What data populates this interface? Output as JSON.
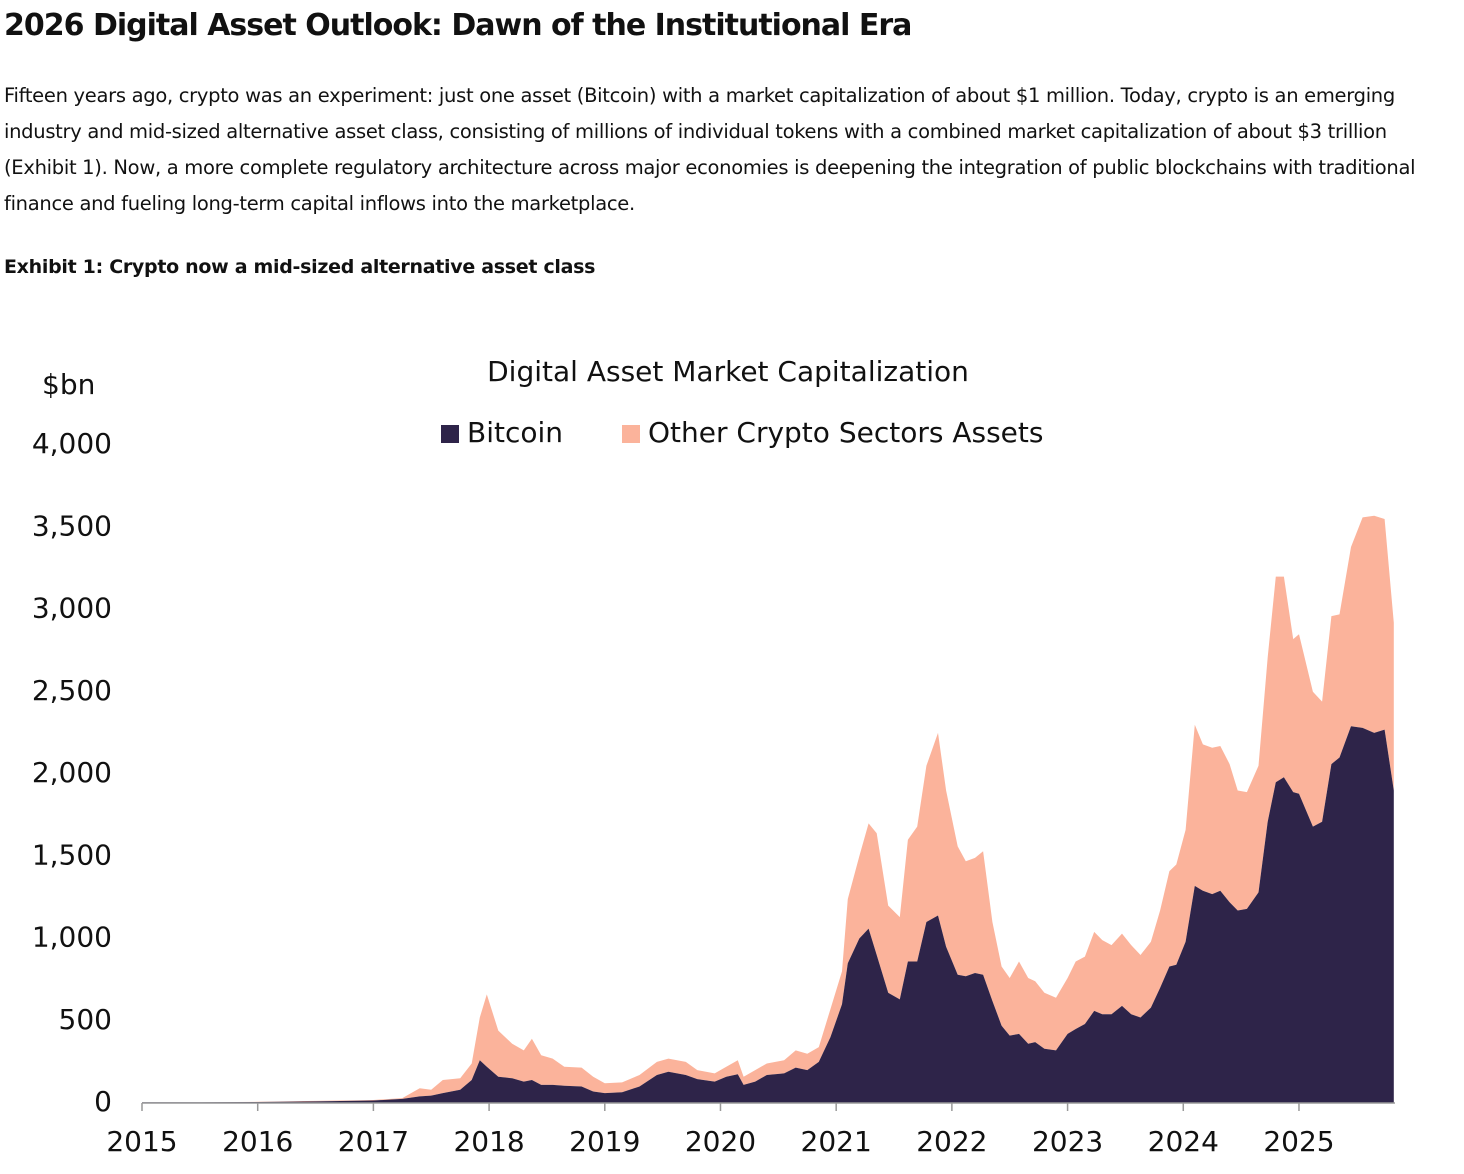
{
  "title": "2026 Digital Asset Outlook: Dawn of the Institutional Era",
  "paragraph": "Fifteen years ago, crypto was an experiment: just one asset (Bitcoin) with a market capitalization of about $1 million. Today, crypto is an emerging industry and mid-sized alternative asset class, consisting of millions of individual tokens with a combined market capitalization of about $3 trillion (Exhibit 1). Now, a more complete regulatory architecture across major economies is deepening the integration of public blockchains with traditional finance and fueling long-term capital inflows into the marketplace.",
  "exhibit_title": "Exhibit 1: Crypto now a mid-sized alternative asset class",
  "chart_data": {
    "type": "stacked_area",
    "title": "Digital Asset Market Capitalization",
    "y_label": "$bn",
    "x": [
      2015.0,
      2015.5,
      2016.0,
      2016.5,
      2017.0,
      2017.25,
      2017.4,
      2017.5,
      2017.6,
      2017.75,
      2017.85,
      2017.92,
      2017.98,
      2018.08,
      2018.2,
      2018.3,
      2018.37,
      2018.45,
      2018.55,
      2018.65,
      2018.8,
      2018.9,
      2019.0,
      2019.15,
      2019.3,
      2019.45,
      2019.55,
      2019.7,
      2019.8,
      2019.95,
      2020.05,
      2020.15,
      2020.2,
      2020.3,
      2020.4,
      2020.55,
      2020.65,
      2020.75,
      2020.85,
      2020.95,
      2021.05,
      2021.1,
      2021.2,
      2021.28,
      2021.35,
      2021.45,
      2021.55,
      2021.62,
      2021.7,
      2021.78,
      2021.88,
      2021.95,
      2022.05,
      2022.12,
      2022.2,
      2022.27,
      2022.35,
      2022.43,
      2022.5,
      2022.58,
      2022.66,
      2022.72,
      2022.8,
      2022.9,
      2023.0,
      2023.07,
      2023.15,
      2023.23,
      2023.3,
      2023.38,
      2023.47,
      2023.55,
      2023.63,
      2023.72,
      2023.8,
      2023.88,
      2023.94,
      2024.02,
      2024.1,
      2024.17,
      2024.25,
      2024.32,
      2024.4,
      2024.47,
      2024.55,
      2024.65,
      2024.73,
      2024.8,
      2024.87,
      2024.95,
      2025.0,
      2025.12,
      2025.2,
      2025.28,
      2025.35,
      2025.45,
      2025.55,
      2025.65,
      2025.74,
      2025.82
    ],
    "series": [
      {
        "name": "Bitcoin",
        "color": "#2e2449",
        "values": [
          4,
          4,
          6,
          10,
          15,
          25,
          40,
          45,
          60,
          80,
          140,
          260,
          220,
          160,
          150,
          130,
          140,
          110,
          110,
          105,
          100,
          70,
          60,
          65,
          100,
          170,
          190,
          170,
          145,
          130,
          160,
          175,
          110,
          130,
          170,
          180,
          215,
          200,
          250,
          400,
          600,
          850,
          1000,
          1060,
          900,
          670,
          630,
          860,
          860,
          1100,
          1140,
          950,
          780,
          770,
          790,
          780,
          620,
          470,
          410,
          420,
          360,
          370,
          330,
          320,
          420,
          450,
          480,
          560,
          540,
          540,
          590,
          540,
          520,
          580,
          700,
          830,
          840,
          980,
          1320,
          1290,
          1270,
          1290,
          1220,
          1170,
          1180,
          1280,
          1710,
          1950,
          1980,
          1890,
          1880,
          1680,
          1710,
          2060,
          2100,
          2290,
          2280,
          2250,
          2270,
          1900
        ]
      },
      {
        "name": "Other Crypto Sectors Assets",
        "color": "#fbb39b",
        "values": [
          1,
          1,
          1,
          3,
          3,
          5,
          50,
          35,
          80,
          70,
          100,
          260,
          440,
          280,
          210,
          190,
          250,
          180,
          160,
          115,
          115,
          90,
          60,
          60,
          70,
          80,
          80,
          80,
          55,
          50,
          60,
          85,
          50,
          70,
          70,
          80,
          105,
          100,
          90,
          170,
          200,
          390,
          500,
          640,
          740,
          530,
          500,
          740,
          820,
          950,
          1110,
          950,
          780,
          700,
          700,
          750,
          480,
          360,
          350,
          440,
          400,
          370,
          340,
          320,
          340,
          410,
          410,
          480,
          450,
          420,
          440,
          420,
          380,
          400,
          470,
          580,
          610,
          680,
          980,
          890,
          890,
          880,
          840,
          730,
          710,
          770,
          1000,
          1250,
          1220,
          930,
          970,
          820,
          730,
          900,
          870,
          1090,
          1280,
          1320,
          1280,
          1020
        ]
      }
    ],
    "xlim": [
      2015,
      2025.83
    ],
    "xticks": [
      2015,
      2016,
      2017,
      2018,
      2019,
      2020,
      2021,
      2022,
      2023,
      2024,
      2025
    ],
    "ylim": [
      0,
      4000
    ],
    "yticks": [
      0,
      500,
      {
        "value": 1000,
        "label": "1,000"
      },
      {
        "value": 1500,
        "label": "1,500"
      },
      {
        "value": 2000,
        "label": "2,000"
      },
      {
        "value": 2500,
        "label": "2,500"
      },
      {
        "value": 3000,
        "label": "3,000"
      },
      {
        "value": 3500,
        "label": "3,500"
      },
      {
        "value": 4000,
        "label": "4,000"
      }
    ],
    "legend": "top"
  }
}
